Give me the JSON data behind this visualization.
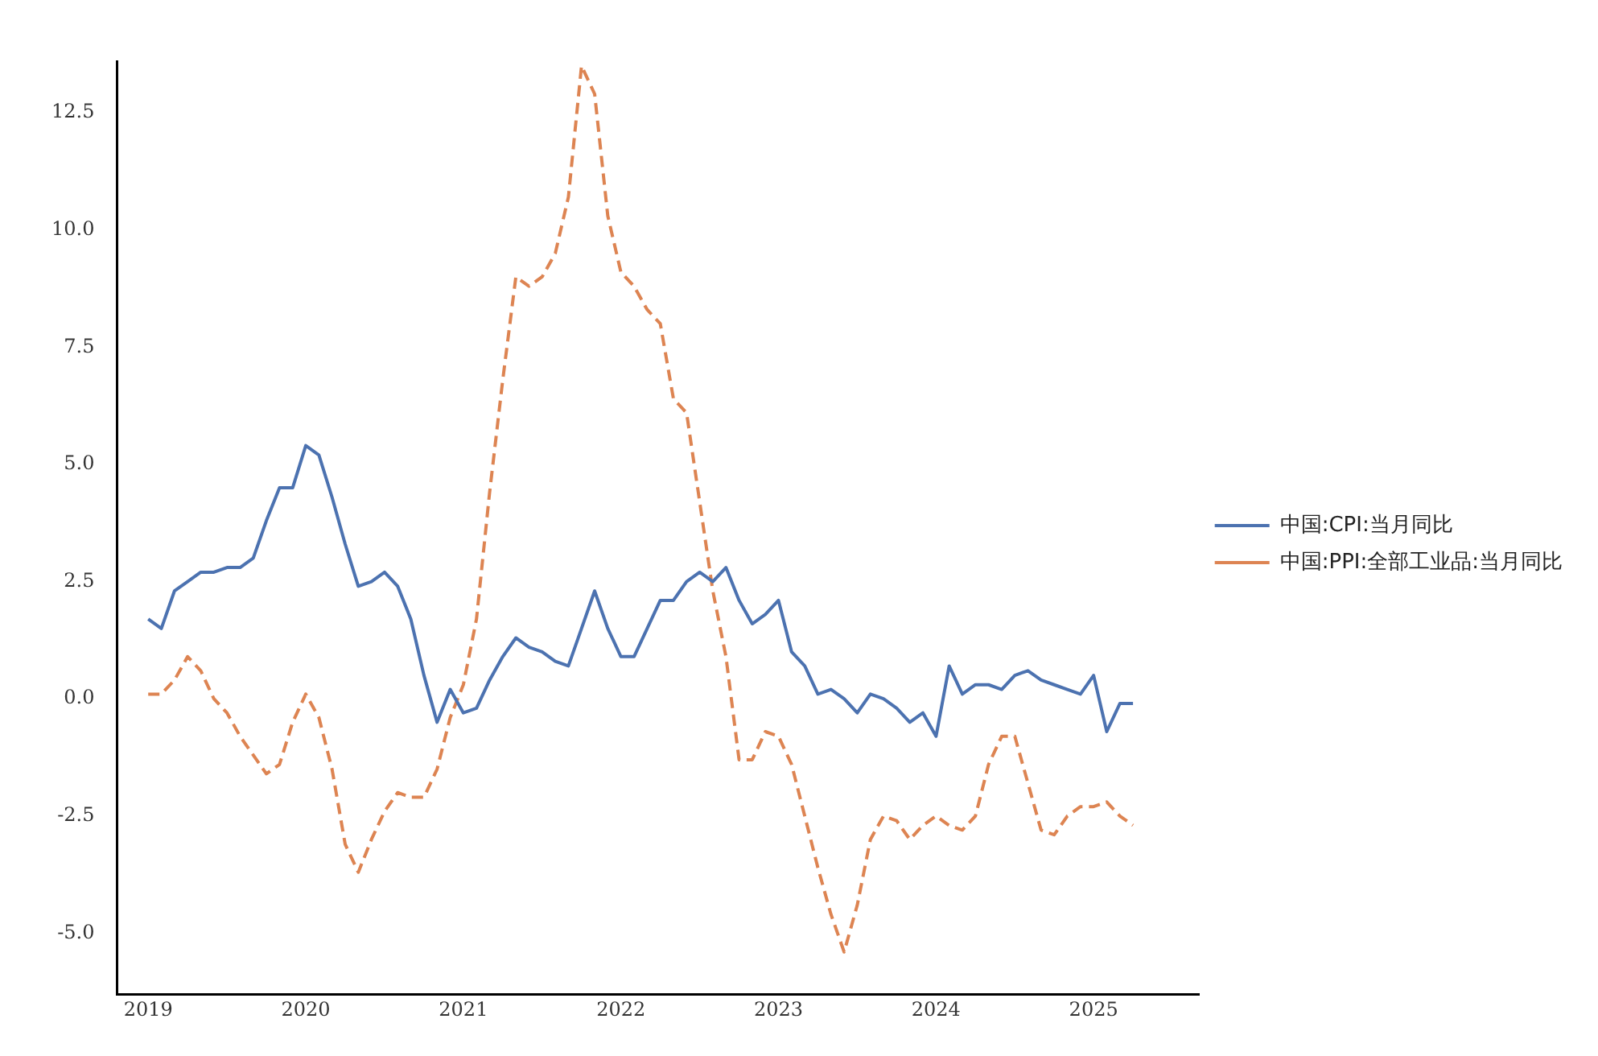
{
  "chart_data": {
    "type": "line",
    "x": [
      "2019-01",
      "2019-02",
      "2019-03",
      "2019-04",
      "2019-05",
      "2019-06",
      "2019-07",
      "2019-08",
      "2019-09",
      "2019-10",
      "2019-11",
      "2019-12",
      "2020-01",
      "2020-02",
      "2020-03",
      "2020-04",
      "2020-05",
      "2020-06",
      "2020-07",
      "2020-08",
      "2020-09",
      "2020-10",
      "2020-11",
      "2020-12",
      "2021-01",
      "2021-02",
      "2021-03",
      "2021-04",
      "2021-05",
      "2021-06",
      "2021-07",
      "2021-08",
      "2021-09",
      "2021-10",
      "2021-11",
      "2021-12",
      "2022-01",
      "2022-02",
      "2022-03",
      "2022-04",
      "2022-05",
      "2022-06",
      "2022-07",
      "2022-08",
      "2022-09",
      "2022-10",
      "2022-11",
      "2022-12",
      "2023-01",
      "2023-02",
      "2023-03",
      "2023-04",
      "2023-05",
      "2023-06",
      "2023-07",
      "2023-08",
      "2023-09",
      "2023-10",
      "2023-11",
      "2023-12",
      "2024-01",
      "2024-02",
      "2024-03",
      "2024-04",
      "2024-05",
      "2024-06",
      "2024-07",
      "2024-08",
      "2024-09",
      "2024-10",
      "2024-11",
      "2024-12",
      "2025-01",
      "2025-02",
      "2025-03",
      "2025-04"
    ],
    "series": [
      {
        "name": "中国:CPI:当月同比",
        "color": "#4c72b0",
        "line_style": "solid",
        "values": [
          1.7,
          1.5,
          2.3,
          2.5,
          2.7,
          2.7,
          2.8,
          2.8,
          3.0,
          3.8,
          4.5,
          4.5,
          5.4,
          5.2,
          4.3,
          3.3,
          2.4,
          2.5,
          2.7,
          2.4,
          1.7,
          0.5,
          -0.5,
          0.2,
          -0.3,
          -0.2,
          0.4,
          0.9,
          1.3,
          1.1,
          1.0,
          0.8,
          0.7,
          1.5,
          2.3,
          1.5,
          0.9,
          0.9,
          1.5,
          2.1,
          2.1,
          2.5,
          2.7,
          2.5,
          2.8,
          2.1,
          1.6,
          1.8,
          2.1,
          1.0,
          0.7,
          0.1,
          0.2,
          0.0,
          -0.3,
          0.1,
          0.0,
          -0.2,
          -0.5,
          -0.3,
          -0.8,
          0.7,
          0.1,
          0.3,
          0.3,
          0.2,
          0.5,
          0.6,
          0.4,
          0.3,
          0.2,
          0.1,
          0.5,
          -0.7,
          -0.1,
          -0.1
        ]
      },
      {
        "name": "中国:PPI:全部工业品:当月同比",
        "color": "#dd8452",
        "line_style": "dashed",
        "values": [
          0.1,
          0.1,
          0.4,
          0.9,
          0.6,
          0.0,
          -0.3,
          -0.8,
          -1.2,
          -1.6,
          -1.4,
          -0.5,
          0.1,
          -0.4,
          -1.5,
          -3.1,
          -3.7,
          -3.0,
          -2.4,
          -2.0,
          -2.1,
          -2.1,
          -1.5,
          -0.4,
          0.3,
          1.7,
          4.4,
          6.8,
          9.0,
          8.8,
          9.0,
          9.5,
          10.7,
          13.5,
          12.9,
          10.3,
          9.1,
          8.8,
          8.3,
          8.0,
          6.4,
          6.1,
          4.2,
          2.3,
          0.9,
          -1.3,
          -1.3,
          -0.7,
          -0.8,
          -1.4,
          -2.5,
          -3.6,
          -4.6,
          -5.4,
          -4.4,
          -3.0,
          -2.5,
          -2.6,
          -3.0,
          -2.7,
          -2.5,
          -2.7,
          -2.8,
          -2.5,
          -1.4,
          -0.8,
          -0.8,
          -1.8,
          -2.8,
          -2.9,
          -2.5,
          -2.3,
          -2.3,
          -2.2,
          -2.5,
          -2.7
        ]
      }
    ],
    "xlim": [
      "2018-10-20",
      "2025-09-01"
    ],
    "xticks": [
      "2019",
      "2020",
      "2021",
      "2022",
      "2023",
      "2024",
      "2025"
    ],
    "ylim": [
      -6.3,
      13.6
    ],
    "yticks": [
      {
        "value": -5,
        "label": "-5.0"
      },
      {
        "value": -2.5,
        "label": "-2.5"
      },
      {
        "value": 0,
        "label": "0.0"
      },
      {
        "value": 2.5,
        "label": "2.5"
      },
      {
        "value": 5,
        "label": "5.0"
      },
      {
        "value": 7.5,
        "label": "7.5"
      },
      {
        "value": 10,
        "label": "10.0"
      },
      12.5
    ],
    "grid": false,
    "legend": "right"
  }
}
